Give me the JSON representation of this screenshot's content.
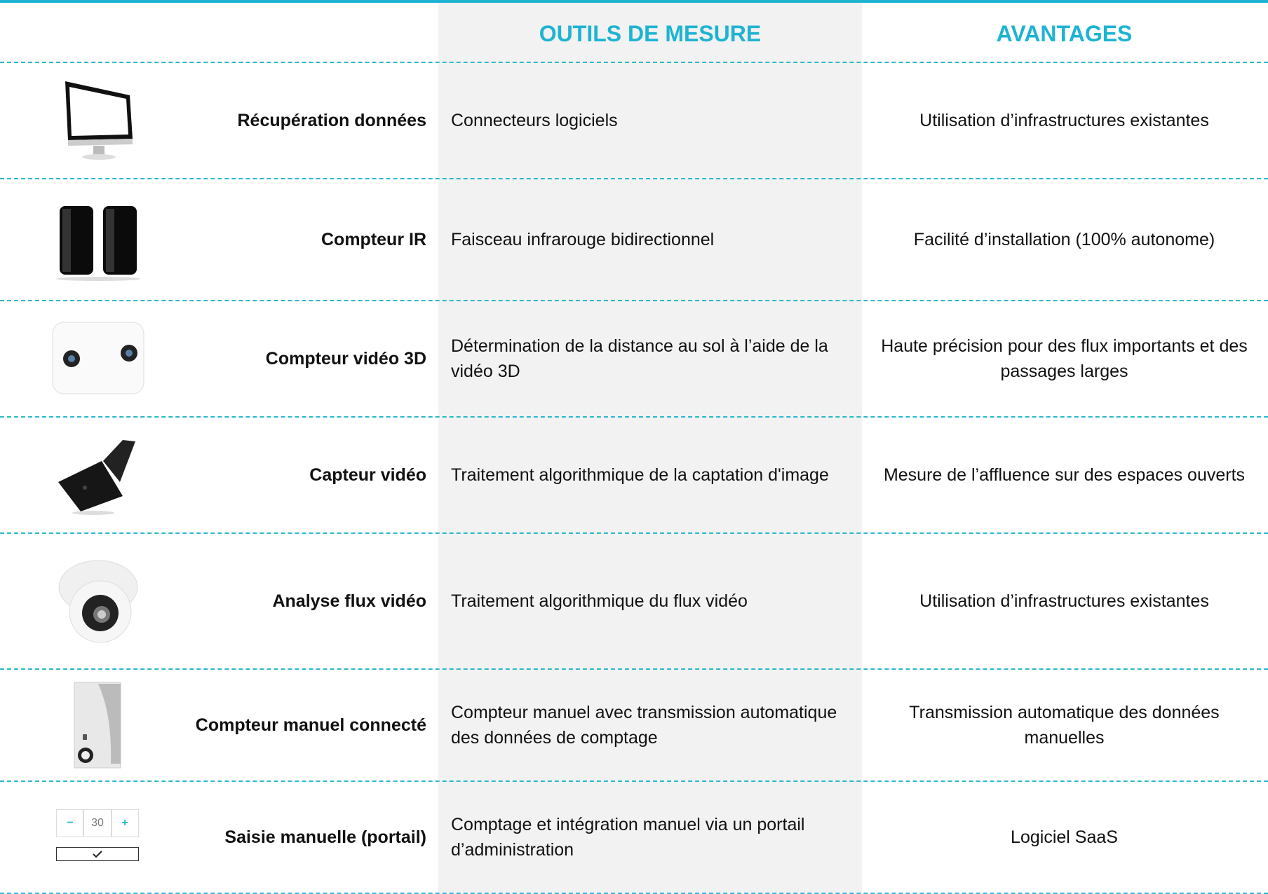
{
  "header": {
    "tools": "OUTILS DE MESURE",
    "advantages": "AVANTAGES"
  },
  "rows": [
    {
      "label": "Récupération données",
      "tool": "Connecteurs logiciels",
      "advantage": "Utilisation d’infrastructures existantes"
    },
    {
      "label": "Compteur IR",
      "tool": "Faisceau infrarouge bidirectionnel",
      "advantage": "Facilité d’installation (100% autonome)"
    },
    {
      "label": "Compteur vidéo 3D",
      "tool": "Détermination de la distance au sol à l’aide de la vidéo 3D",
      "advantage": "Haute précision pour des flux importants et des passages larges"
    },
    {
      "label": "Capteur vidéo",
      "tool": "Traitement algorithmique de la captation d'image",
      "advantage": "Mesure de l’affluence sur des espaces ouverts"
    },
    {
      "label": "Analyse flux vidéo",
      "tool": "Traitement algorithmique du flux vidéo",
      "advantage": "Utilisation d’infrastructures existantes"
    },
    {
      "label": "Compteur manuel connecté",
      "tool": "Compteur manuel avec transmission automatique des données de comptage",
      "advantage": "Transmission automatique des données manuelles"
    },
    {
      "label": "Saisie manuelle (portail)",
      "tool": "Comptage et intégration manuel via un portail d’administration",
      "advantage": "Logiciel SaaS"
    }
  ],
  "counter": {
    "minus": "−",
    "value": 30,
    "plus": "+"
  }
}
